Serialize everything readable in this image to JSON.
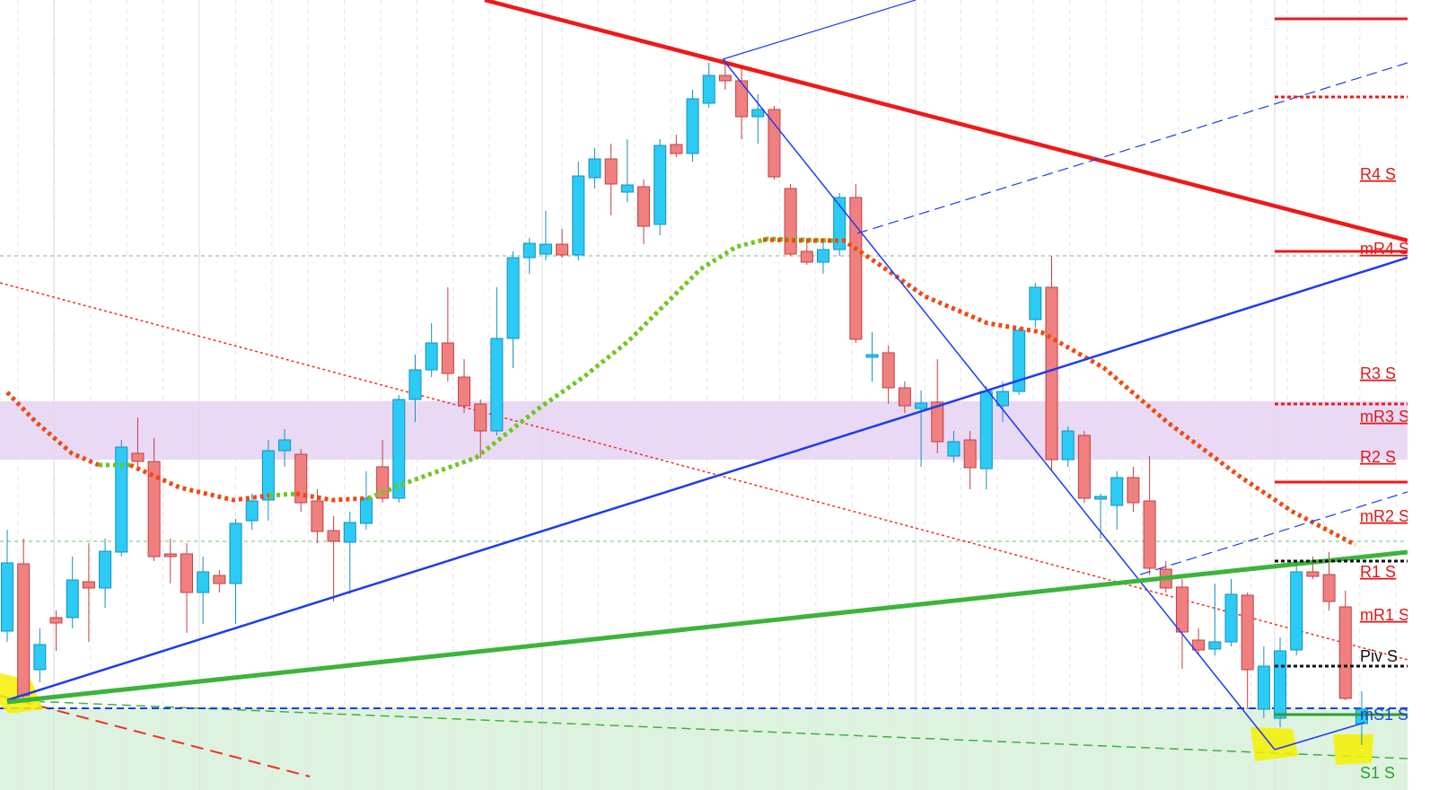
{
  "chart_data": {
    "type": "candlestick",
    "up_color": "#2bcbf5",
    "down_color": "#f08080",
    "ylim": [
      0,
      880
    ],
    "annotations": [
      "R4 S",
      "mR4 S",
      "R3 S",
      "mR3 S",
      "R2 S",
      "mR2 S",
      "R1 S",
      "mR1 S",
      "Piv S",
      "mS1 S",
      "S1 S"
    ],
    "open": [
      177,
      252,
      134,
      192,
      192,
      232,
      225,
      265,
      375,
      366,
      263,
      263,
      220,
      239,
      230,
      300,
      323,
      378,
      374,
      322,
      289,
      276,
      297,
      360,
      325,
      435,
      468,
      498,
      460,
      430,
      400,
      503,
      593,
      597,
      608,
      596,
      682,
      703,
      666,
      672,
      630,
      719,
      709,
      765,
      796,
      790,
      750,
      758,
      670,
      600,
      588,
      602,
      660,
      482,
      487,
      448,
      425,
      432,
      372,
      390,
      358,
      428,
      444,
      524,
      560,
      368,
      395,
      324,
      317,
      348,
      322,
      246,
      226,
      167,
      157,
      165,
      217,
      90,
      80,
      156,
      243,
      240,
      204,
      74
    ],
    "high": [
      290,
      280,
      180,
      200,
      260,
      275,
      280,
      390,
      415,
      392,
      280,
      275,
      260,
      245,
      302,
      330,
      390,
      402,
      380,
      335,
      305,
      310,
      355,
      390,
      440,
      485,
      520,
      560,
      480,
      435,
      560,
      600,
      615,
      645,
      625,
      700,
      715,
      720,
      725,
      680,
      725,
      730,
      780,
      810,
      814,
      805,
      775,
      762,
      675,
      615,
      610,
      665,
      675,
      510,
      495,
      455,
      445,
      480,
      400,
      400,
      450,
      455,
      515,
      565,
      595,
      405,
      400,
      330,
      355,
      360,
      372,
      255,
      235,
      180,
      230,
      235,
      220,
      160,
      170,
      250,
      260,
      265,
      222,
      110
    ],
    "low": [
      165,
      100,
      120,
      155,
      180,
      165,
      203,
      260,
      355,
      255,
      230,
      175,
      185,
      220,
      185,
      290,
      300,
      360,
      310,
      275,
      210,
      218,
      290,
      320,
      320,
      410,
      460,
      455,
      420,
      370,
      395,
      470,
      575,
      590,
      593,
      590,
      670,
      640,
      655,
      608,
      618,
      705,
      700,
      760,
      780,
      725,
      720,
      680,
      595,
      585,
      575,
      595,
      498,
      455,
      430,
      420,
      360,
      375,
      365,
      335,
      335,
      410,
      440,
      515,
      355,
      360,
      320,
      280,
      290,
      310,
      240,
      220,
      135,
      150,
      150,
      160,
      90,
      80,
      70,
      150,
      235,
      200,
      100,
      50
    ],
    "close": [
      253,
      105,
      162,
      186,
      234,
      225,
      266,
      382,
      366,
      260,
      260,
      220,
      243,
      230,
      297,
      322,
      378,
      390,
      320,
      288,
      277,
      298,
      325,
      325,
      435,
      468,
      498,
      464,
      428,
      400,
      503,
      593,
      609,
      608,
      596,
      684,
      703,
      675,
      674,
      628,
      718,
      709,
      770,
      796,
      790,
      750,
      758,
      683,
      597,
      588,
      602,
      660,
      502,
      485,
      448,
      428,
      431,
      388,
      388,
      359,
      444,
      444,
      512,
      560,
      368,
      400,
      325,
      327,
      348,
      320,
      247,
      225,
      176,
      156,
      165,
      218,
      134,
      138,
      155,
      243,
      238,
      210,
      102,
      90
    ]
  }
}
